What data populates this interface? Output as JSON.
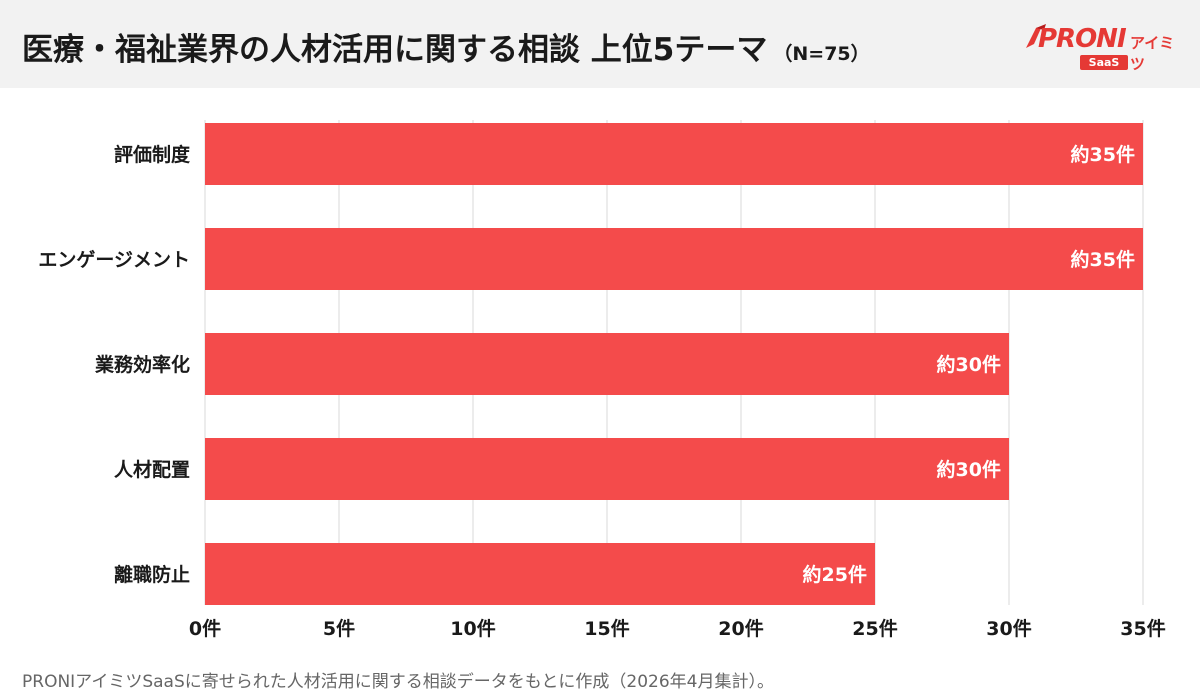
{
  "header": {
    "title": "医療・福祉業界の人材活用に関する相談 上位5テーマ",
    "sample_size": "（N=75）"
  },
  "logo": {
    "brand": "PRONI",
    "sub": "アイミツ",
    "badge": "SaaS"
  },
  "chart_data": {
    "type": "bar",
    "orientation": "horizontal",
    "categories": [
      "評価制度",
      "エンゲージメント",
      "業務効率化",
      "人材配置",
      "離職防止"
    ],
    "values": [
      35,
      35,
      30,
      30,
      25
    ],
    "data_labels": [
      "約35件",
      "約35件",
      "約30件",
      "約30件",
      "約25件"
    ],
    "xlim": [
      0,
      35
    ],
    "x_ticks": [
      0,
      5,
      10,
      15,
      20,
      25,
      30,
      35
    ],
    "x_tick_labels": [
      "0件",
      "5件",
      "10件",
      "15件",
      "20件",
      "25件",
      "30件",
      "35件"
    ],
    "grid": true,
    "bar_color": "#f44b4b",
    "grid_color": "#d9d9d9"
  },
  "footer": {
    "note": "PRONIアイミツSaaSに寄せられた人材活用に関する相談データをもとに作成（2026年4月集計）。"
  }
}
